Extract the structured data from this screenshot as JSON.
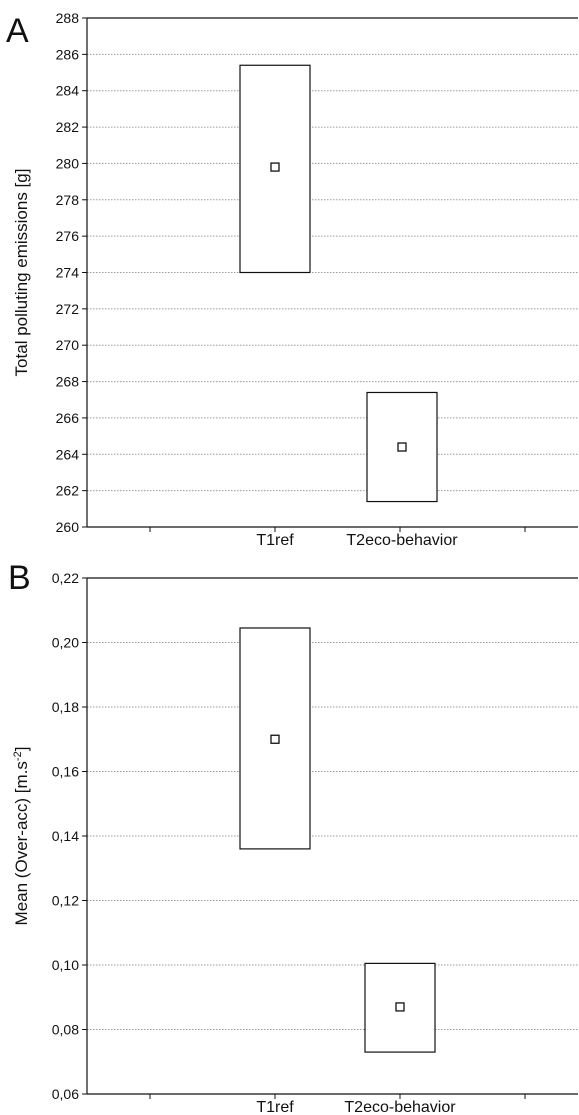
{
  "figure": {
    "panels": [
      {
        "letter": "A"
      },
      {
        "letter": "B"
      }
    ]
  },
  "chart_data": [
    {
      "type": "box",
      "panel": "A",
      "title": "",
      "xlabel": "",
      "ylabel": "Total polluting emissions [g]",
      "ylim": [
        260,
        288
      ],
      "yticks": [
        260,
        262,
        264,
        266,
        268,
        270,
        272,
        274,
        276,
        278,
        280,
        282,
        284,
        286,
        288
      ],
      "ytick_labels": [
        "260",
        "262",
        "264",
        "266",
        "268",
        "270",
        "272",
        "274",
        "276",
        "278",
        "280",
        "282",
        "284",
        "286",
        "288"
      ],
      "categories": [
        "T1ref",
        "T2eco-behavior"
      ],
      "mean": [
        279.8,
        264.4
      ],
      "box_low": [
        274.0,
        261.4
      ],
      "box_high": [
        285.4,
        267.4
      ],
      "grid": true
    },
    {
      "type": "box",
      "panel": "B",
      "title": "",
      "xlabel": "",
      "ylabel": "Mean (Over-acc) [m.s-2]",
      "ylabel_main": "Mean (Over-acc) [m.s",
      "ylabel_sup": "-2",
      "ylabel_end": "]",
      "ylim": [
        0.06,
        0.22
      ],
      "yticks": [
        0.06,
        0.08,
        0.1,
        0.12,
        0.14,
        0.16,
        0.18,
        0.2,
        0.22
      ],
      "ytick_labels": [
        "0,06",
        "0,08",
        "0,10",
        "0,12",
        "0,14",
        "0,16",
        "0,18",
        "0,20",
        "0,22"
      ],
      "categories": [
        "T1ref",
        "T2eco-behavior"
      ],
      "mean": [
        0.17,
        0.087
      ],
      "box_low": [
        0.136,
        0.073
      ],
      "box_high": [
        0.2045,
        0.1005
      ],
      "grid": true
    }
  ]
}
